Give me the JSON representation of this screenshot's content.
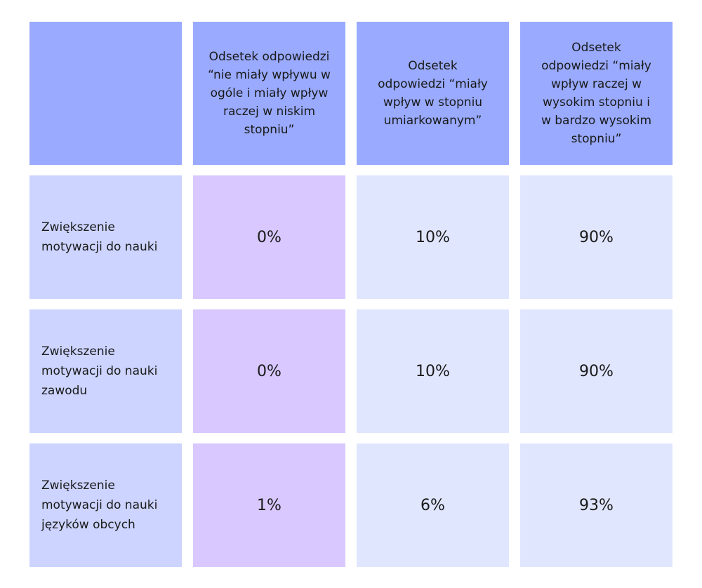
{
  "chart_data": {
    "type": "table",
    "columns": [
      "",
      "Odsetek odpowiedzi “nie miały wpływu w ogóle i miały wpływ raczej w niskim stopniu”",
      "Odsetek odpowiedzi “miały wpływ w stopniu umiarkowanym”",
      "Odsetek odpowiedzi “miały wpływ raczej w wysokim stopniu i w bardzo wysokim stopniu”"
    ],
    "columns_display": [
      "",
      "Odsetek odpowiedzi\n“nie miały wpływu w\nogóle i miały wpływ\nraczej w niskim\nstopniu”",
      "Odsetek\nodpowiedzi “miały\nwpływ w stopniu\numiarkowanym”",
      "Odsetek\nodpowiedzi “miały\nwpływ raczej w\nwysokim stopniu i\nw bardzo wysokim\nstopniu”"
    ],
    "rows": [
      {
        "label": "Zwiększenie motywacji do nauki",
        "label_display": "Zwiększenie\nmotywacji do nauki",
        "values": [
          "0%",
          "10%",
          "90%"
        ]
      },
      {
        "label": "Zwiększenie motywacji do nauki zawodu",
        "label_display": "Zwiększenie\nmotywacji do nauki\nzawodu",
        "values": [
          "0%",
          "10%",
          "90%"
        ]
      },
      {
        "label": "Zwiększenie motywacji do nauki języków obcych",
        "label_display": "Zwiększenie\nmotywacji do nauki\njęzyków obcych",
        "values": [
          "1%",
          "6%",
          "93%"
        ]
      }
    ],
    "colors": {
      "header": "#99aaff",
      "row_label": "#ccd4ff",
      "low_column": "#d8c8ff",
      "value_cells": "#e1e6ff"
    }
  }
}
